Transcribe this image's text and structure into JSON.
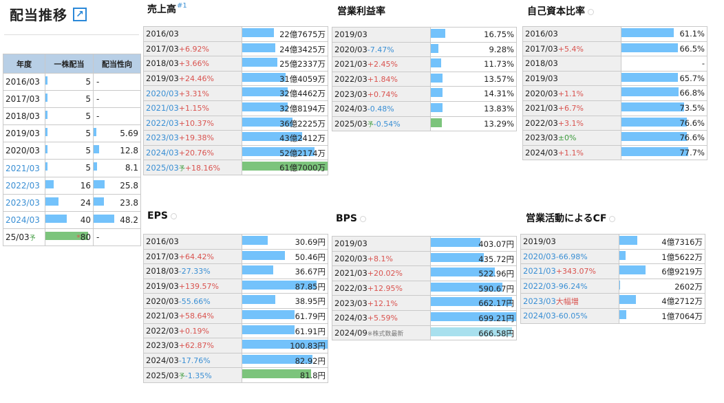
{
  "page": {
    "title": "配当推移",
    "external_link_glyph": "↗"
  },
  "dividend": {
    "headers": [
      "年度",
      "一株配当",
      "配当性向"
    ],
    "rows": [
      {
        "year": "2016/03",
        "dps": "5",
        "dps_pct": 5,
        "payout": "-",
        "payout_pct": 0,
        "blue": false
      },
      {
        "year": "2017/03",
        "dps": "5",
        "dps_pct": 5,
        "payout": "-",
        "payout_pct": 0,
        "blue": false
      },
      {
        "year": "2018/03",
        "dps": "5",
        "dps_pct": 5,
        "payout": "-",
        "payout_pct": 0,
        "blue": false
      },
      {
        "year": "2019/03",
        "dps": "5",
        "dps_pct": 5,
        "payout": "5.69",
        "payout_pct": 9,
        "blue": false
      },
      {
        "year": "2020/03",
        "dps": "5",
        "dps_pct": 5,
        "payout": "12.8",
        "payout_pct": 18,
        "blue": false
      },
      {
        "year": "2021/03",
        "dps": "5",
        "dps_pct": 5,
        "payout": "8.1",
        "payout_pct": 12,
        "blue": true
      },
      {
        "year": "2022/03",
        "dps": "16",
        "dps_pct": 20,
        "payout": "25.8",
        "payout_pct": 37,
        "blue": true
      },
      {
        "year": "2023/03",
        "dps": "24",
        "dps_pct": 30,
        "payout": "23.8",
        "payout_pct": 34,
        "blue": true
      },
      {
        "year": "2024/03",
        "dps": "40",
        "dps_pct": 50,
        "payout": "48.2",
        "payout_pct": 69,
        "blue": true
      },
      {
        "year": "25/03",
        "forecast": "予",
        "dps": "80",
        "dps_mark": "*",
        "dps_pct": 100,
        "payout": "-",
        "payout_pct": 0,
        "blue": false,
        "estimate": true
      }
    ]
  },
  "panels": {
    "sales": {
      "title": "売上高",
      "title_note": "#1",
      "rows": [
        {
          "year": "2016/03",
          "change": "",
          "dir": "",
          "value": "22億7675万",
          "pct": 37
        },
        {
          "year": "2017/03",
          "change": "+6.92%",
          "dir": "up",
          "value": "24億3425万",
          "pct": 39
        },
        {
          "year": "2018/03",
          "change": "+3.66%",
          "dir": "up",
          "value": "25億2337万",
          "pct": 41
        },
        {
          "year": "2019/03",
          "change": "+24.46%",
          "dir": "up",
          "value": "31億4059万",
          "pct": 51
        },
        {
          "year": "2020/03",
          "change": "+3.31%",
          "dir": "up",
          "value": "32億4462万",
          "pct": 53,
          "blue": true
        },
        {
          "year": "2021/03",
          "change": "+1.15%",
          "dir": "up",
          "value": "32億8194万",
          "pct": 53,
          "blue": true
        },
        {
          "year": "2022/03",
          "change": "+10.37%",
          "dir": "up",
          "value": "36億2225万",
          "pct": 59,
          "blue": true
        },
        {
          "year": "2023/03",
          "change": "+19.38%",
          "dir": "up",
          "value": "43億2412万",
          "pct": 70,
          "blue": true
        },
        {
          "year": "2024/03",
          "change": "+20.76%",
          "dir": "up",
          "value": "52億2174万",
          "pct": 85,
          "blue": true
        },
        {
          "year": "2025/03",
          "forecast": "予",
          "change": "+18.16%",
          "dir": "up",
          "value": "61億7000万",
          "pct": 100,
          "blue": true,
          "estimate": true
        }
      ]
    },
    "op_margin": {
      "title": "営業利益率",
      "rows": [
        {
          "year": "2019/03",
          "change": "",
          "dir": "",
          "value": "16.75%",
          "pct": 17
        },
        {
          "year": "2020/03",
          "change": "-7.47%",
          "dir": "dn",
          "value": "9.28%",
          "pct": 9
        },
        {
          "year": "2021/03",
          "change": "+2.45%",
          "dir": "up",
          "value": "11.73%",
          "pct": 12
        },
        {
          "year": "2022/03",
          "change": "+1.84%",
          "dir": "up",
          "value": "13.57%",
          "pct": 14
        },
        {
          "year": "2023/03",
          "change": "+0.74%",
          "dir": "up",
          "value": "14.31%",
          "pct": 14
        },
        {
          "year": "2024/03",
          "change": "-0.48%",
          "dir": "dn",
          "value": "13.83%",
          "pct": 14
        },
        {
          "year": "2025/03",
          "forecast": "予",
          "change": "-0.54%",
          "dir": "dn",
          "value": "13.29%",
          "pct": 13,
          "estimate": true
        }
      ]
    },
    "equity_ratio": {
      "title": "自己資本比率",
      "rows": [
        {
          "year": "2016/03",
          "change": "",
          "dir": "",
          "value": "61.1%",
          "pct": 61
        },
        {
          "year": "2017/03",
          "change": "+5.4%",
          "dir": "up",
          "value": "66.5%",
          "pct": 66
        },
        {
          "year": "2018/03",
          "change": "",
          "dir": "",
          "value": "-",
          "pct": 0
        },
        {
          "year": "2019/03",
          "change": "",
          "dir": "",
          "value": "65.7%",
          "pct": 66
        },
        {
          "year": "2020/03",
          "change": "+1.1%",
          "dir": "up",
          "value": "66.8%",
          "pct": 67
        },
        {
          "year": "2021/03",
          "change": "+6.7%",
          "dir": "up",
          "value": "73.5%",
          "pct": 73
        },
        {
          "year": "2022/03",
          "change": "+3.1%",
          "dir": "up",
          "value": "76.6%",
          "pct": 77
        },
        {
          "year": "2023/03",
          "change": "±0%",
          "dir": "zr",
          "value": "76.6%",
          "pct": 77
        },
        {
          "year": "2024/03",
          "change": "+1.1%",
          "dir": "up",
          "value": "77.7%",
          "pct": 78
        }
      ]
    },
    "eps": {
      "title": "EPS",
      "rows": [
        {
          "year": "2016/03",
          "change": "",
          "dir": "",
          "value": "30.69円",
          "pct": 30
        },
        {
          "year": "2017/03",
          "change": "+64.42%",
          "dir": "up",
          "value": "50.46円",
          "pct": 50
        },
        {
          "year": "2018/03",
          "change": "-27.33%",
          "dir": "dn",
          "value": "36.67円",
          "pct": 36
        },
        {
          "year": "2019/03",
          "change": "+139.57%",
          "dir": "up",
          "value": "87.85円",
          "pct": 87
        },
        {
          "year": "2020/03",
          "change": "-55.66%",
          "dir": "dn",
          "value": "38.95円",
          "pct": 39
        },
        {
          "year": "2021/03",
          "change": "+58.64%",
          "dir": "up",
          "value": "61.79円",
          "pct": 61
        },
        {
          "year": "2022/03",
          "change": "+0.19%",
          "dir": "up",
          "value": "61.91円",
          "pct": 61
        },
        {
          "year": "2023/03",
          "change": "+62.87%",
          "dir": "up",
          "value": "100.83円",
          "pct": 100
        },
        {
          "year": "2024/03",
          "change": "-17.76%",
          "dir": "dn",
          "value": "82.92円",
          "pct": 82
        },
        {
          "year": "2025/03",
          "forecast": "予",
          "change": "-1.35%",
          "dir": "dn",
          "value": "81.8円",
          "pct": 81,
          "estimate": true
        }
      ]
    },
    "bps": {
      "title": "BPS",
      "rows": [
        {
          "year": "2019/03",
          "change": "",
          "dir": "",
          "value": "403.07円",
          "pct": 58
        },
        {
          "year": "2020/03",
          "change": "+8.1%",
          "dir": "up",
          "value": "435.72円",
          "pct": 62
        },
        {
          "year": "2021/03",
          "change": "+20.02%",
          "dir": "up",
          "value": "522.96円",
          "pct": 75
        },
        {
          "year": "2022/03",
          "change": "+12.95%",
          "dir": "up",
          "value": "590.67円",
          "pct": 84
        },
        {
          "year": "2023/03",
          "change": "+12.1%",
          "dir": "up",
          "value": "662.17円",
          "pct": 95
        },
        {
          "year": "2024/03",
          "change": "+5.59%",
          "dir": "up",
          "value": "699.21円",
          "pct": 100
        },
        {
          "year": "2024/09",
          "note": "※株式数最新",
          "change": "",
          "dir": "",
          "value": "666.58円",
          "pct": 95,
          "latest": true
        }
      ]
    },
    "op_cf": {
      "title": "営業活動によるCF",
      "rows": [
        {
          "year": "2019/03",
          "change": "",
          "dir": "",
          "value": "4億7316万",
          "pct": 21
        },
        {
          "year": "2020/03",
          "change": "-66.98%",
          "dir": "dn",
          "value": "1億5622万",
          "pct": 7,
          "blue": true
        },
        {
          "year": "2021/03",
          "change": "+343.07%",
          "dir": "up",
          "value": "6億9219万",
          "pct": 31,
          "blue": true
        },
        {
          "year": "2022/03",
          "change": "-96.24%",
          "dir": "dn",
          "value": "2602万",
          "pct": 1,
          "blue": true
        },
        {
          "year": "2023/03",
          "change": "大幅増",
          "dir": "up",
          "value": "4億2712万",
          "pct": 19,
          "blue": true
        },
        {
          "year": "2024/03",
          "change": "-60.05%",
          "dir": "dn",
          "value": "1億7064万",
          "pct": 8,
          "blue": true
        }
      ]
    }
  },
  "colors": {
    "bar": "#73c2fb",
    "estimate_bar": "#7cc47c",
    "latest_bar": "#a8e0ee",
    "up": "#d9534f",
    "down": "#3a8fd4",
    "header_bg": "#b8cfe6"
  }
}
